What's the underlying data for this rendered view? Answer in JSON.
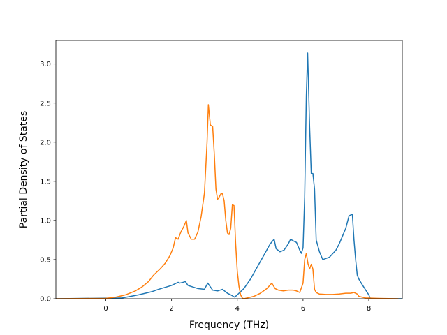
{
  "chart_data": {
    "type": "line",
    "title": "",
    "xlabel": "Frequency (THz)",
    "ylabel": "Partial Density of States",
    "xlim": [
      -1.52,
      9.02
    ],
    "ylim": [
      0.0,
      3.3
    ],
    "xticks": [
      0,
      2,
      4,
      6,
      8
    ],
    "xtick_labels": [
      "0",
      "2",
      "4",
      "6",
      "8"
    ],
    "yticks": [
      0.0,
      0.5,
      1.0,
      1.5,
      2.0,
      2.5,
      3.0
    ],
    "ytick_labels": [
      "0.0",
      "0.5",
      "1.0",
      "1.5",
      "2.0",
      "2.5",
      "3.0"
    ],
    "grid": false,
    "legend": "none",
    "series": [
      {
        "color": "#1f77b4",
        "x": [
          -1.52,
          0.5,
          1.0,
          1.4,
          1.6,
          2.0,
          2.2,
          2.25,
          2.35,
          2.42,
          2.5,
          2.8,
          3.0,
          3.1,
          3.15,
          3.25,
          3.4,
          3.55,
          3.7,
          3.8,
          3.92,
          4.0,
          4.2,
          4.4,
          4.6,
          4.8,
          5.0,
          5.12,
          5.18,
          5.3,
          5.42,
          5.55,
          5.62,
          5.7,
          5.8,
          5.9,
          5.95,
          6.0,
          6.05,
          6.1,
          6.14,
          6.2,
          6.25,
          6.3,
          6.35,
          6.4,
          6.5,
          6.6,
          6.8,
          7.0,
          7.1,
          7.2,
          7.3,
          7.4,
          7.5,
          7.55,
          7.6,
          7.65,
          7.7,
          7.8,
          8.0,
          8.05,
          9.02
        ],
        "y": [
          0.0,
          0.01,
          0.05,
          0.09,
          0.12,
          0.17,
          0.21,
          0.2,
          0.21,
          0.22,
          0.17,
          0.13,
          0.12,
          0.2,
          0.17,
          0.11,
          0.1,
          0.12,
          0.07,
          0.05,
          0.02,
          0.05,
          0.13,
          0.25,
          0.4,
          0.55,
          0.7,
          0.76,
          0.64,
          0.6,
          0.62,
          0.7,
          0.76,
          0.74,
          0.72,
          0.62,
          0.58,
          0.65,
          1.3,
          2.6,
          3.14,
          2.2,
          1.6,
          1.6,
          1.4,
          0.75,
          0.6,
          0.5,
          0.53,
          0.62,
          0.7,
          0.8,
          0.9,
          1.06,
          1.08,
          0.75,
          0.5,
          0.3,
          0.25,
          0.18,
          0.05,
          0.0,
          0.0
        ]
      },
      {
        "color": "#ff7f0e",
        "x": [
          -1.52,
          0.0,
          0.3,
          0.6,
          0.9,
          1.1,
          1.3,
          1.45,
          1.55,
          1.65,
          1.8,
          1.95,
          2.05,
          2.12,
          2.2,
          2.28,
          2.38,
          2.45,
          2.5,
          2.6,
          2.7,
          2.8,
          2.9,
          3.0,
          3.08,
          3.12,
          3.18,
          3.25,
          3.3,
          3.35,
          3.4,
          3.45,
          3.5,
          3.55,
          3.6,
          3.65,
          3.7,
          3.75,
          3.8,
          3.85,
          3.9,
          3.95,
          4.0,
          4.05,
          4.1,
          4.15,
          4.2,
          4.3,
          4.5,
          4.7,
          4.9,
          5.05,
          5.15,
          5.25,
          5.4,
          5.55,
          5.7,
          5.8,
          5.9,
          6.0,
          6.05,
          6.1,
          6.15,
          6.2,
          6.25,
          6.3,
          6.35,
          6.4,
          6.5,
          6.7,
          6.9,
          7.1,
          7.3,
          7.45,
          7.55,
          7.65,
          7.7,
          7.9,
          8.3,
          8.9
        ],
        "y": [
          0.0,
          0.005,
          0.02,
          0.05,
          0.1,
          0.15,
          0.22,
          0.3,
          0.34,
          0.38,
          0.45,
          0.55,
          0.65,
          0.78,
          0.76,
          0.85,
          0.93,
          1.0,
          0.84,
          0.76,
          0.76,
          0.85,
          1.05,
          1.35,
          2.0,
          2.48,
          2.22,
          2.2,
          1.85,
          1.4,
          1.27,
          1.3,
          1.34,
          1.34,
          1.25,
          1.0,
          0.84,
          0.82,
          0.9,
          1.2,
          1.19,
          0.7,
          0.35,
          0.16,
          0.05,
          0.01,
          0.0,
          0.01,
          0.03,
          0.07,
          0.13,
          0.2,
          0.13,
          0.11,
          0.1,
          0.11,
          0.11,
          0.1,
          0.08,
          0.2,
          0.5,
          0.58,
          0.45,
          0.38,
          0.44,
          0.38,
          0.12,
          0.08,
          0.06,
          0.055,
          0.055,
          0.06,
          0.07,
          0.07,
          0.08,
          0.06,
          0.03,
          0.01,
          0.005,
          0.0
        ]
      }
    ]
  }
}
